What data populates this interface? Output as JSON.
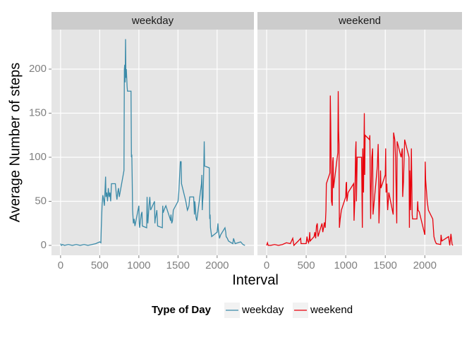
{
  "chart_data": {
    "type": "line",
    "facets": true,
    "xlabel": "Interval",
    "ylabel": "Average Number of steps",
    "legend_title": "Type of Day",
    "legend": "bottom",
    "grid": true,
    "xlim": [
      -116,
      2470
    ],
    "ylim": [
      -11.2,
      244.8
    ],
    "xticks": [
      0,
      500,
      1000,
      1500,
      2000
    ],
    "yticks": [
      0,
      50,
      100,
      150,
      200
    ],
    "series": [
      {
        "name": "weekday",
        "color": "#3a8aa8",
        "x": [
          0,
          10,
          25,
          50,
          100,
          150,
          200,
          250,
          300,
          350,
          400,
          450,
          500,
          515,
          520,
          530,
          540,
          550,
          560,
          570,
          575,
          580,
          590,
          600,
          610,
          620,
          630,
          640,
          650,
          700,
          710,
          720,
          730,
          740,
          750,
          800,
          810,
          815,
          820,
          825,
          830,
          835,
          840,
          850,
          855,
          900,
          905,
          910,
          915,
          920,
          930,
          940,
          950,
          1000,
          1005,
          1010,
          1030,
          1040,
          1045,
          1100,
          1105,
          1110,
          1115,
          1130,
          1140,
          1150,
          1200,
          1205,
          1210,
          1215,
          1230,
          1240,
          1300,
          1305,
          1310,
          1330,
          1345,
          1400,
          1405,
          1410,
          1420,
          1430,
          1440,
          1500,
          1510,
          1530,
          1540,
          1545,
          1600,
          1610,
          1620,
          1630,
          1640,
          1650,
          1700,
          1710,
          1715,
          1720,
          1730,
          1740,
          1800,
          1805,
          1810,
          1815,
          1820,
          1830,
          1835,
          1840,
          1900,
          1905,
          1910,
          1915,
          1930,
          2000,
          2010,
          2015,
          2030,
          2045,
          2100,
          2110,
          2115,
          2130,
          2145,
          2200,
          2210,
          2230,
          2300,
          2330,
          2355
        ],
        "values": [
          2,
          0,
          1,
          0,
          1,
          0,
          1,
          0,
          1,
          0,
          1,
          2,
          4,
          3,
          20,
          45,
          57,
          52,
          45,
          67,
          78,
          55,
          60,
          50,
          65,
          55,
          60,
          50,
          70,
          70,
          60,
          52,
          60,
          65,
          55,
          80,
          85,
          200,
          205,
          185,
          234,
          190,
          200,
          180,
          175,
          175,
          100,
          103,
          75,
          40,
          25,
          30,
          22,
          45,
          25,
          20,
          35,
          38,
          22,
          20,
          55,
          35,
          25,
          45,
          55,
          40,
          50,
          25,
          30,
          32,
          40,
          22,
          20,
          45,
          37,
          42,
          45,
          30,
          28,
          35,
          25,
          28,
          40,
          50,
          60,
          95,
          95,
          70,
          50,
          45,
          40,
          42,
          45,
          55,
          55,
          35,
          50,
          45,
          32,
          28,
          70,
          80,
          40,
          50,
          55,
          90,
          118,
          90,
          88,
          30,
          35,
          20,
          10,
          15,
          25,
          18,
          8,
          12,
          20,
          15,
          10,
          8,
          5,
          2,
          8,
          2,
          4,
          1,
          0
        ]
      },
      {
        "name": "weekend",
        "color": "#e8000b",
        "x": [
          0,
          10,
          20,
          50,
          100,
          150,
          200,
          250,
          300,
          330,
          345,
          400,
          430,
          435,
          500,
          510,
          520,
          530,
          540,
          545,
          550,
          600,
          610,
          620,
          630,
          640,
          650,
          700,
          710,
          720,
          730,
          740,
          750,
          755,
          800,
          805,
          810,
          820,
          830,
          835,
          840,
          845,
          900,
          905,
          910,
          915,
          920,
          930,
          945,
          1000,
          1005,
          1010,
          1015,
          1030,
          1100,
          1105,
          1110,
          1115,
          1125,
          1130,
          1135,
          1145,
          1200,
          1205,
          1210,
          1215,
          1225,
          1235,
          1240,
          1245,
          1300,
          1305,
          1315,
          1320,
          1330,
          1340,
          1345,
          1400,
          1410,
          1415,
          1420,
          1430,
          1440,
          1445,
          1500,
          1505,
          1510,
          1520,
          1530,
          1545,
          1600,
          1605,
          1620,
          1630,
          1645,
          1650,
          1700,
          1715,
          1720,
          1730,
          1745,
          1800,
          1805,
          1810,
          1820,
          1830,
          1840,
          1845,
          1900,
          1910,
          1915,
          1930,
          2000,
          2005,
          2010,
          2030,
          2045,
          2100,
          2115,
          2130,
          2145,
          2200,
          2205,
          2215,
          2300,
          2315,
          2330,
          2345,
          2355
        ],
        "values": [
          0,
          3,
          0,
          0,
          1,
          0,
          1,
          3,
          2,
          8,
          0,
          5,
          8,
          2,
          2,
          10,
          5,
          3,
          8,
          15,
          5,
          10,
          15,
          8,
          22,
          25,
          10,
          25,
          15,
          20,
          26,
          20,
          40,
          70,
          82,
          170,
          140,
          50,
          45,
          95,
          100,
          65,
          105,
          175,
          130,
          115,
          20,
          30,
          40,
          55,
          70,
          72,
          50,
          60,
          70,
          28,
          40,
          52,
          108,
          118,
          50,
          100,
          100,
          60,
          20,
          110,
          60,
          150,
          80,
          125,
          120,
          125,
          30,
          55,
          100,
          110,
          35,
          90,
          115,
          90,
          25,
          55,
          85,
          65,
          80,
          110,
          60,
          70,
          40,
          60,
          35,
          128,
          120,
          100,
          25,
          118,
          100,
          110,
          55,
          72,
          120,
          100,
          20,
          85,
          40,
          110,
          35,
          30,
          30,
          50,
          40,
          38,
          12,
          95,
          75,
          50,
          40,
          30,
          10,
          5,
          2,
          1,
          12,
          5,
          10,
          0,
          13,
          1,
          0
        ]
      }
    ]
  }
}
